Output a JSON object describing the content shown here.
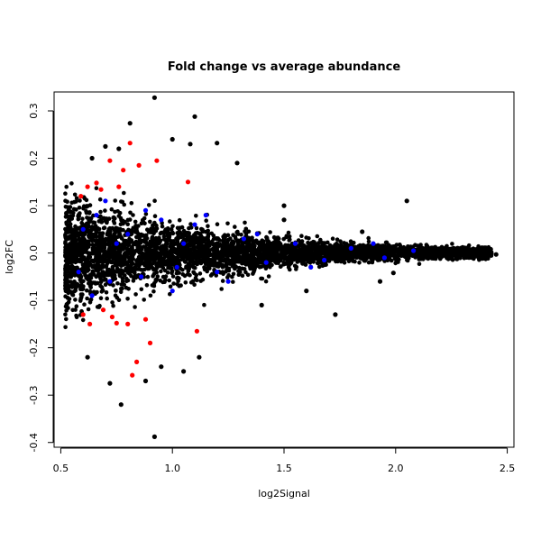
{
  "chart_data": {
    "type": "scatter",
    "title": "Fold change vs average abundance",
    "xlabel": "log2Signal",
    "ylabel": "log2FC",
    "xlim": [
      0.47,
      2.53
    ],
    "ylim": [
      -0.41,
      0.34
    ],
    "xticks": [
      0.5,
      1.0,
      1.5,
      2.0,
      2.5
    ],
    "xtick_labels": [
      "0.5",
      "1.0",
      "1.5",
      "2.0",
      "2.5"
    ],
    "yticks": [
      -0.4,
      -0.3,
      -0.2,
      -0.1,
      0.0,
      0.1,
      0.2,
      0.3
    ],
    "ytick_labels": [
      "-0.4",
      "-0.3",
      "-0.2",
      "-0.1",
      "0.0",
      "0.1",
      "0.2",
      "0.3"
    ],
    "grid": false,
    "legend": "none",
    "series": [
      {
        "color": "#000000",
        "points": [
          [
            0.92,
            0.328
          ],
          [
            1.1,
            0.288
          ],
          [
            0.81,
            0.274
          ],
          [
            0.92,
            -0.388
          ],
          [
            0.77,
            -0.32
          ],
          [
            0.72,
            -0.275
          ],
          [
            1.08,
            0.23
          ],
          [
            1.2,
            0.232
          ],
          [
            1.29,
            0.19
          ],
          [
            1.5,
            0.1
          ],
          [
            1.6,
            -0.08
          ],
          [
            1.73,
            -0.13
          ],
          [
            1.99,
            -0.042
          ],
          [
            2.05,
            0.11
          ],
          [
            2.45,
            -0.003
          ],
          [
            2.42,
            -0.002
          ],
          [
            2.3,
            0.012
          ],
          [
            0.62,
            -0.22
          ],
          [
            0.88,
            -0.27
          ],
          [
            0.95,
            -0.24
          ],
          [
            1.05,
            -0.25
          ],
          [
            1.12,
            -0.22
          ],
          [
            0.64,
            0.2
          ],
          [
            0.7,
            0.225
          ],
          [
            0.76,
            0.22
          ],
          [
            1.0,
            0.24
          ],
          [
            1.4,
            -0.11
          ],
          [
            1.5,
            0.07
          ],
          [
            1.85,
            0.045
          ],
          [
            1.93,
            -0.06
          ]
        ]
      },
      {
        "color": "#ff0000",
        "points": [
          [
            0.62,
            0.14
          ],
          [
            0.66,
            0.148
          ],
          [
            0.68,
            0.134
          ],
          [
            0.81,
            0.232
          ],
          [
            0.72,
            0.195
          ],
          [
            0.78,
            0.175
          ],
          [
            0.85,
            0.185
          ],
          [
            0.93,
            0.195
          ],
          [
            1.07,
            0.15
          ],
          [
            0.76,
            0.14
          ],
          [
            0.59,
            0.12
          ],
          [
            0.6,
            -0.13
          ],
          [
            0.63,
            -0.15
          ],
          [
            0.69,
            -0.12
          ],
          [
            0.75,
            -0.148
          ],
          [
            0.8,
            -0.15
          ],
          [
            0.84,
            -0.23
          ],
          [
            0.82,
            -0.258
          ],
          [
            0.9,
            -0.19
          ],
          [
            1.11,
            -0.165
          ],
          [
            0.88,
            -0.14
          ],
          [
            0.73,
            -0.135
          ]
        ]
      },
      {
        "color": "#0000ff",
        "points": [
          [
            0.6,
            0.05
          ],
          [
            0.66,
            0.08
          ],
          [
            0.72,
            -0.06
          ],
          [
            0.8,
            0.04
          ],
          [
            0.86,
            -0.05
          ],
          [
            0.95,
            0.07
          ],
          [
            1.02,
            -0.03
          ],
          [
            1.1,
            0.06
          ],
          [
            1.2,
            -0.04
          ],
          [
            1.32,
            0.03
          ],
          [
            1.42,
            -0.02
          ],
          [
            1.55,
            0.02
          ],
          [
            1.68,
            -0.015
          ],
          [
            1.8,
            0.01
          ],
          [
            1.95,
            -0.01
          ],
          [
            2.08,
            0.005
          ],
          [
            0.64,
            -0.09
          ],
          [
            0.7,
            0.11
          ],
          [
            0.88,
            0.09
          ],
          [
            1.0,
            -0.08
          ],
          [
            1.15,
            0.08
          ],
          [
            1.25,
            -0.06
          ],
          [
            0.58,
            -0.04
          ],
          [
            0.75,
            0.02
          ],
          [
            1.05,
            0.02
          ],
          [
            1.38,
            0.04
          ],
          [
            1.62,
            -0.03
          ],
          [
            1.9,
            0.02
          ]
        ]
      }
    ],
    "density_cloud": {
      "color": "#000000",
      "x_range": [
        0.52,
        2.43
      ],
      "description_free": true
    }
  }
}
